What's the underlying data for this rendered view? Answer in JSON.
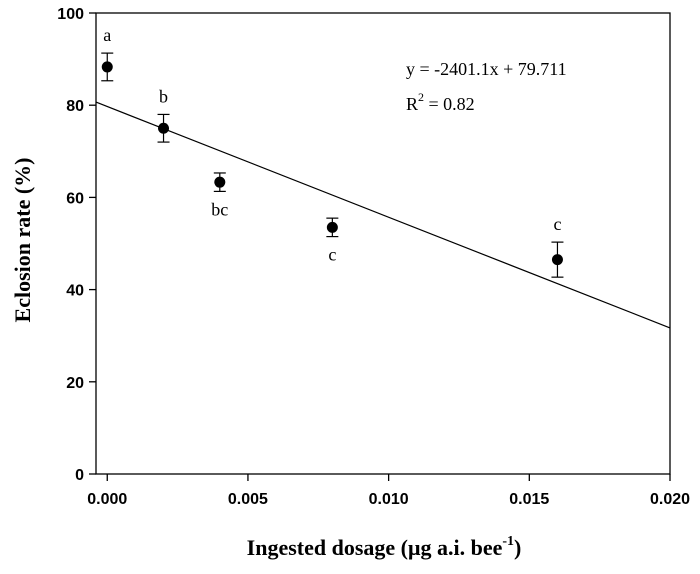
{
  "chart_data": {
    "type": "scatter",
    "title": "",
    "xlabel": "Ingested dosage  (μg a.i. bee",
    "xlabel_superscript": "-1",
    "xlabel_suffix": ")",
    "ylabel": "Eclosion rate (%)",
    "xlim": [
      -0.0004,
      0.02
    ],
    "ylim": [
      0,
      100
    ],
    "x_ticks": [
      0.0,
      0.005,
      0.01,
      0.015,
      0.02
    ],
    "x_tick_labels": [
      "0.000",
      "0.005",
      "0.010",
      "0.015",
      "0.020"
    ],
    "y_ticks": [
      0,
      20,
      40,
      60,
      80,
      100
    ],
    "y_tick_labels": [
      "0",
      "20",
      "40",
      "60",
      "80",
      "100"
    ],
    "series": [
      {
        "name": "Eclosion rate",
        "x": [
          0.0,
          0.002,
          0.004,
          0.008,
          0.016
        ],
        "y": [
          88.3,
          75.0,
          63.3,
          53.5,
          46.5
        ],
        "error": [
          3.0,
          3.0,
          2.0,
          2.0,
          3.8
        ],
        "letters": [
          "a",
          "b",
          "bc",
          "c",
          "c"
        ],
        "letter_position": [
          "above",
          "above",
          "below",
          "below",
          "above"
        ]
      }
    ],
    "regression": {
      "slope": -2401.1,
      "intercept": 79.711,
      "equation": "y = -2401.1x + 79.711",
      "r2_prefix": "R",
      "r2_superscript": "2",
      "r2_suffix": " = 0.82"
    },
    "grid": false
  }
}
